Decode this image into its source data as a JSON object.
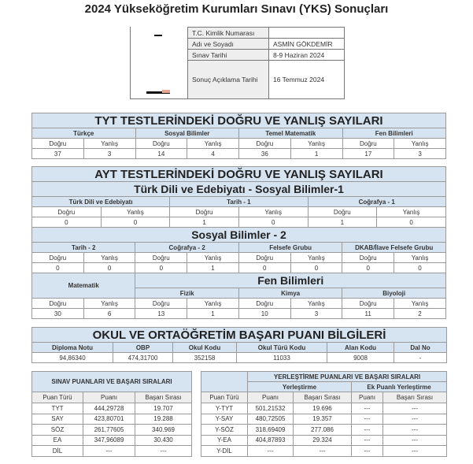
{
  "title": "2024 Yükseköğretim Kurumları Sınavı (YKS) Sonuçları",
  "info": {
    "tc_label": "T.C. Kimlik Numarası",
    "tc_value": "",
    "name_label": "Adı ve Soyadı",
    "name_value": "ASMİN GÖKDEMİR",
    "exam_date_label": "Sınav Tarihi",
    "exam_date_value": "8-9 Haziran 2024",
    "result_date_label": "Sonuç Açıklama Tarihi",
    "result_date_value": "16 Temmuz 2024"
  },
  "labels": {
    "d": "Doğru",
    "y": "Yanlış"
  },
  "tyt": {
    "title": "TYT TESTLERİNDEKİ DOĞRU VE YANLIŞ SAYILARI",
    "subjects": [
      {
        "name": "Türkçe",
        "d": "37",
        "y": "3"
      },
      {
        "name": "Sosyal Bilimler",
        "d": "14",
        "y": "4"
      },
      {
        "name": "Temel Matematik",
        "d": "36",
        "y": "1"
      },
      {
        "name": "Fen Bilimleri",
        "d": "17",
        "y": "3"
      }
    ]
  },
  "ayt": {
    "title": "AYT TESTLERİNDEKİ DOĞRU VE YANLIŞ SAYILARI",
    "tde_title": "Türk Dili ve Edebiyatı - Sosyal Bilimler-1",
    "tde": [
      {
        "name": "Türk Dili ve Edebiyatı",
        "d": "0",
        "y": "0"
      },
      {
        "name": "Tarih - 1",
        "d": "1",
        "y": "0"
      },
      {
        "name": "Coğrafya - 1",
        "d": "1",
        "y": "0"
      }
    ],
    "sb2_title": "Sosyal Bilimler - 2",
    "sb2": [
      {
        "name": "Tarih - 2",
        "d": "0",
        "y": "0"
      },
      {
        "name": "Coğrafya - 2",
        "d": "0",
        "y": "1"
      },
      {
        "name": "Felsefe Grubu",
        "d": "0",
        "y": "0"
      },
      {
        "name": "DKAB/İlave Felsefe Grubu",
        "d": "0",
        "y": "0"
      }
    ],
    "mat": {
      "name": "Matematik",
      "d": "30",
      "y": "6"
    },
    "fen_title": "Fen Bilimleri",
    "fen": [
      {
        "name": "Fizik",
        "d": "13",
        "y": "1"
      },
      {
        "name": "Kimya",
        "d": "10",
        "y": "3"
      },
      {
        "name": "Biyoloji",
        "d": "11",
        "y": "2"
      }
    ]
  },
  "okul": {
    "title": "OKUL VE ORTAÖĞRETİM BAŞARI PUANI BİLGİLERİ",
    "headers": [
      "Diploma Notu",
      "OBP",
      "Okul Kodu",
      "Okul Türü Kodu",
      "Alan Kodu",
      "Dal No"
    ],
    "values": [
      "94,86340",
      "474,31700",
      "352158",
      "11033",
      "9008",
      "-"
    ]
  },
  "sinav": {
    "title": "SINAV PUANLARI VE BAŞARI SIRALARI",
    "headers": [
      "Puan Türü",
      "Puanı",
      "Başarı Sırası"
    ],
    "rows": [
      [
        "TYT",
        "444,29728",
        "19.707"
      ],
      [
        "SAY",
        "423,80701",
        "19.288"
      ],
      [
        "SÖZ",
        "261,77605",
        "340.969"
      ],
      [
        "EA",
        "347,96089",
        "30.430"
      ],
      [
        "DİL",
        "---",
        "---"
      ]
    ]
  },
  "yer": {
    "title": "YERLEŞTİRME PUANLARI VE BAŞARI SIRALARI",
    "sub1": "Yerleştirme",
    "sub2": "Ek Puanlı Yerleştirme",
    "headers": [
      "Puan Türü",
      "Puanı",
      "Başarı Sırası",
      "Puanı",
      "Başarı Sırası"
    ],
    "rows": [
      [
        "Y-TYT",
        "501,21532",
        "19.696",
        "---",
        "---"
      ],
      [
        "Y-SAY",
        "480,72505",
        "19.357",
        "---",
        "---"
      ],
      [
        "Y-SÖZ",
        "318,69409",
        "277.086",
        "---",
        "---"
      ],
      [
        "Y-EA",
        "404,87893",
        "29.324",
        "---",
        "---"
      ],
      [
        "Y-DİL",
        "---",
        "---",
        "---",
        "---"
      ]
    ]
  }
}
